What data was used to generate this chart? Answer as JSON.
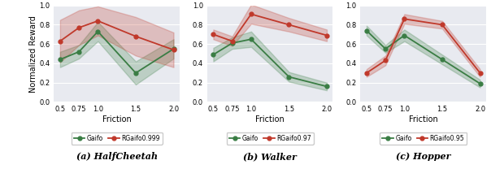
{
  "friction": [
    0.5,
    0.75,
    1.0,
    1.5,
    2.0
  ],
  "halfcheetah": {
    "gaifo_mean": [
      0.44,
      0.52,
      0.73,
      0.3,
      0.55
    ],
    "gaifo_std": [
      0.08,
      0.07,
      0.1,
      0.12,
      0.1
    ],
    "rgaifo_mean": [
      0.63,
      0.77,
      0.84,
      0.68,
      0.54
    ],
    "rgaifo_std": [
      0.22,
      0.18,
      0.15,
      0.2,
      0.18
    ],
    "rgaifo_label": "RGaifo0.999",
    "title": "(a) HalfCheetah"
  },
  "walker": {
    "gaifo_mean": [
      0.49,
      0.61,
      0.65,
      0.26,
      0.16
    ],
    "gaifo_std": [
      0.07,
      0.06,
      0.08,
      0.05,
      0.04
    ],
    "rgaifo_mean": [
      0.7,
      0.63,
      0.91,
      0.8,
      0.69
    ],
    "rgaifo_std": [
      0.05,
      0.05,
      0.1,
      0.07,
      0.06
    ],
    "rgaifo_label": "RGaifo0.97",
    "title": "(b) Walker"
  },
  "hopper": {
    "gaifo_mean": [
      0.74,
      0.55,
      0.69,
      0.44,
      0.19
    ],
    "gaifo_std": [
      0.05,
      0.04,
      0.06,
      0.05,
      0.04
    ],
    "rgaifo_mean": [
      0.3,
      0.43,
      0.86,
      0.8,
      0.3
    ],
    "rgaifo_std": [
      0.04,
      0.05,
      0.05,
      0.04,
      0.04
    ],
    "rgaifo_label": "RGaifo0.95",
    "title": "(c) Hopper"
  },
  "gaifo_color": "#3a7d44",
  "rgaifo_color": "#c0392b",
  "gaifo_fill_alpha": 0.25,
  "rgaifo_fill_alpha": 0.25,
  "ylim": [
    0.0,
    1.0
  ],
  "yticks": [
    0.0,
    0.2,
    0.4,
    0.6,
    0.8,
    1.0
  ],
  "xticks": [
    0.5,
    0.75,
    1.0,
    1.5,
    2.0
  ],
  "xticklabels": [
    "0.5",
    "0.75",
    "1.0",
    "1.5",
    "2.0"
  ],
  "xlabel": "Friction",
  "ylabel": "Normalized Reward",
  "background_color": "#e8eaf0",
  "grid_color": "#ffffff",
  "legend_label_gaifo": "Gaifo"
}
